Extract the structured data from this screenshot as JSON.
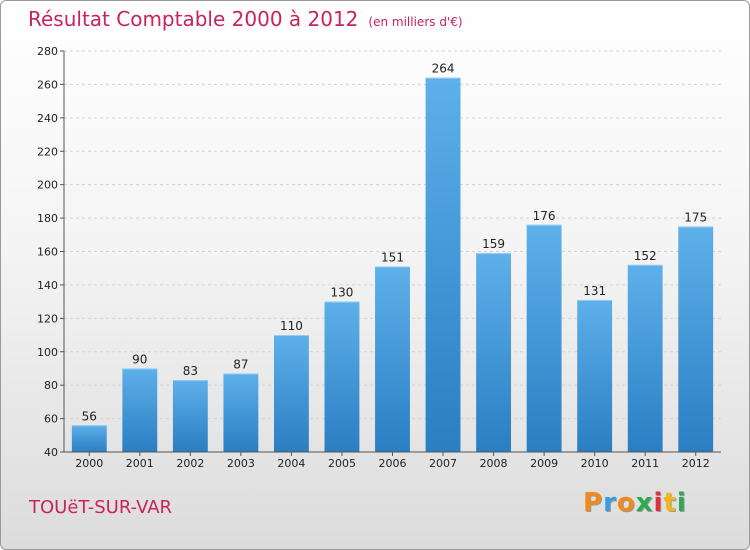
{
  "title": "Résultat Comptable 2000 à 2012",
  "subtitle": "(en milliers d'€)",
  "commune": "TOUëT-SUR-VAR",
  "logo": {
    "text": "Proxiti",
    "colors": [
      "#f08a1c",
      "#3a9be0",
      "#f08a1c",
      "#2fa84f",
      "#e03040",
      "#f2b51c",
      "#2fa84f"
    ]
  },
  "colors": {
    "bar_top": "#5eb0ea",
    "bar_bottom": "#2a7ec2",
    "title": "#c8245a"
  },
  "chart_data": {
    "type": "bar",
    "title": "Résultat Comptable 2000 à 2012",
    "subtitle": "(en milliers d'€)",
    "categories": [
      "2000",
      "2001",
      "2002",
      "2003",
      "2004",
      "2005",
      "2006",
      "2007",
      "2008",
      "2009",
      "2010",
      "2011",
      "2012"
    ],
    "values": [
      56,
      90,
      83,
      87,
      110,
      130,
      151,
      264,
      159,
      176,
      131,
      152,
      175
    ],
    "ylim": [
      40,
      280
    ],
    "yticks": [
      40,
      60,
      80,
      100,
      120,
      140,
      160,
      180,
      200,
      220,
      240,
      260,
      280
    ],
    "grid": true,
    "legend": "none"
  }
}
